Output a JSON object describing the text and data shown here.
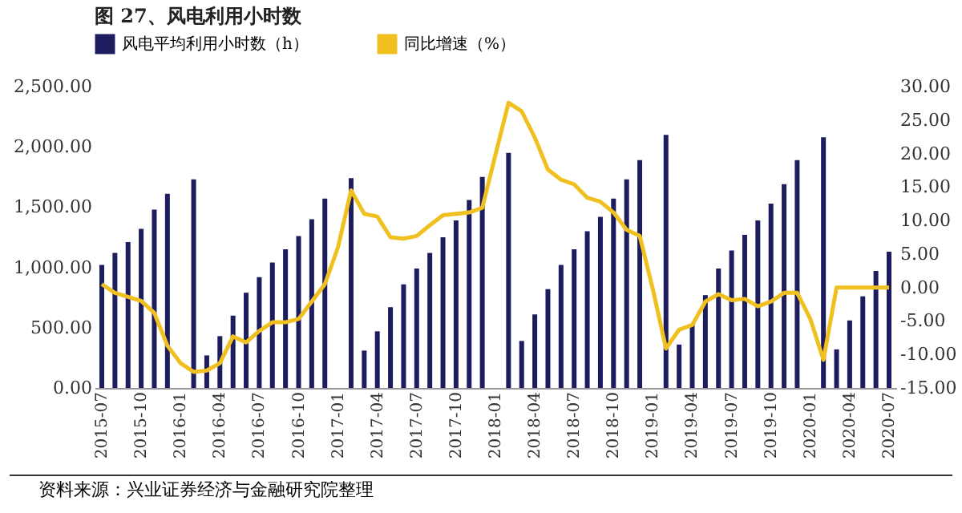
{
  "chart_data": {
    "type": "bar",
    "title": "图 27、风电利用小时数",
    "categories": [
      "2015-07",
      null,
      null,
      "2015-10",
      null,
      null,
      "2016-01",
      null,
      null,
      "2016-04",
      null,
      null,
      "2016-07",
      null,
      null,
      "2016-10",
      null,
      null,
      "2017-01",
      null,
      null,
      "2017-04",
      null,
      null,
      "2017-07",
      null,
      null,
      "2017-10",
      null,
      null,
      "2018-01",
      null,
      null,
      "2018-04",
      null,
      null,
      "2018-07",
      null,
      null,
      "2018-10",
      null,
      null,
      "2019-01",
      null,
      null,
      "2019-04",
      null,
      null,
      "2019-07",
      null,
      null,
      "2019-10",
      null,
      null,
      "2020-01",
      null,
      null,
      "2020-04",
      null,
      null,
      "2020-07"
    ],
    "series": [
      {
        "name": "风电平均利用小时数（h）",
        "color": "#1c1c5e",
        "values": [
          1020,
          1120,
          1210,
          1320,
          1480,
          1610,
          null,
          1730,
          270,
          430,
          600,
          790,
          920,
          1040,
          1150,
          1260,
          1400,
          1570,
          null,
          1740,
          310,
          470,
          670,
          860,
          990,
          1120,
          1250,
          1390,
          1560,
          1750,
          null,
          1950,
          390,
          610,
          820,
          1020,
          1150,
          1300,
          1420,
          1570,
          1730,
          1890,
          null,
          2100,
          360,
          530,
          770,
          990,
          1140,
          1270,
          1390,
          1530,
          1690,
          1890,
          null,
          2080,
          320,
          560,
          760,
          970,
          1130
        ]
      },
      {
        "name": "同比增速（%）",
        "type": "line",
        "axis": "y2",
        "color": "#f0c020",
        "values": [
          0.5,
          -0.8,
          -1.4,
          -2.0,
          -3.8,
          -8.7,
          -11.3,
          -12.6,
          -12.4,
          -11.3,
          -7.3,
          -8.2,
          -6.5,
          -5.2,
          -5.2,
          -4.7,
          -2.1,
          0.5,
          6.0,
          14.5,
          11.0,
          10.6,
          7.5,
          7.3,
          7.7,
          9.3,
          10.8,
          11.0,
          11.2,
          11.9,
          19.8,
          27.6,
          26.3,
          22.4,
          17.6,
          16.1,
          15.4,
          13.4,
          12.8,
          11.2,
          8.6,
          7.7,
          -0.3,
          -9.1,
          -6.3,
          -5.6,
          -2.1,
          -1.0,
          -1.9,
          -1.7,
          -2.8,
          -2.1,
          -0.8,
          -0.8,
          -4.7,
          -10.8,
          0,
          0,
          0,
          0,
          0
        ]
      }
    ],
    "ylim": [
      0,
      2500
    ],
    "yticks": [
      {
        "value": 0,
        "label": "0.00"
      },
      {
        "value": 500,
        "label": "500.00"
      },
      {
        "value": 1000,
        "label": "1,000.00"
      },
      {
        "value": 1500,
        "label": "1,500.00"
      },
      {
        "value": 2000,
        "label": "2,000.00"
      },
      {
        "value": 2500,
        "label": "2,500.00"
      }
    ],
    "y2lim": [
      -15,
      30
    ],
    "y2ticks": [
      {
        "value": -15,
        "label": "-15.00"
      },
      {
        "value": -10,
        "label": "-10.00"
      },
      {
        "value": -5,
        "label": "-5.00"
      },
      {
        "value": 0,
        "label": "0.00"
      },
      {
        "value": 5,
        "label": "5.00"
      },
      {
        "value": 10,
        "label": "10.00"
      },
      {
        "value": 15,
        "label": "15.00"
      },
      {
        "value": 20,
        "label": "20.00"
      },
      {
        "value": 25,
        "label": "25.00"
      },
      {
        "value": 30,
        "label": "30.00"
      }
    ],
    "grid": false,
    "legend": "top",
    "annotations": [
      "资料来源：兴业证券经济与金融研究院整理"
    ]
  }
}
